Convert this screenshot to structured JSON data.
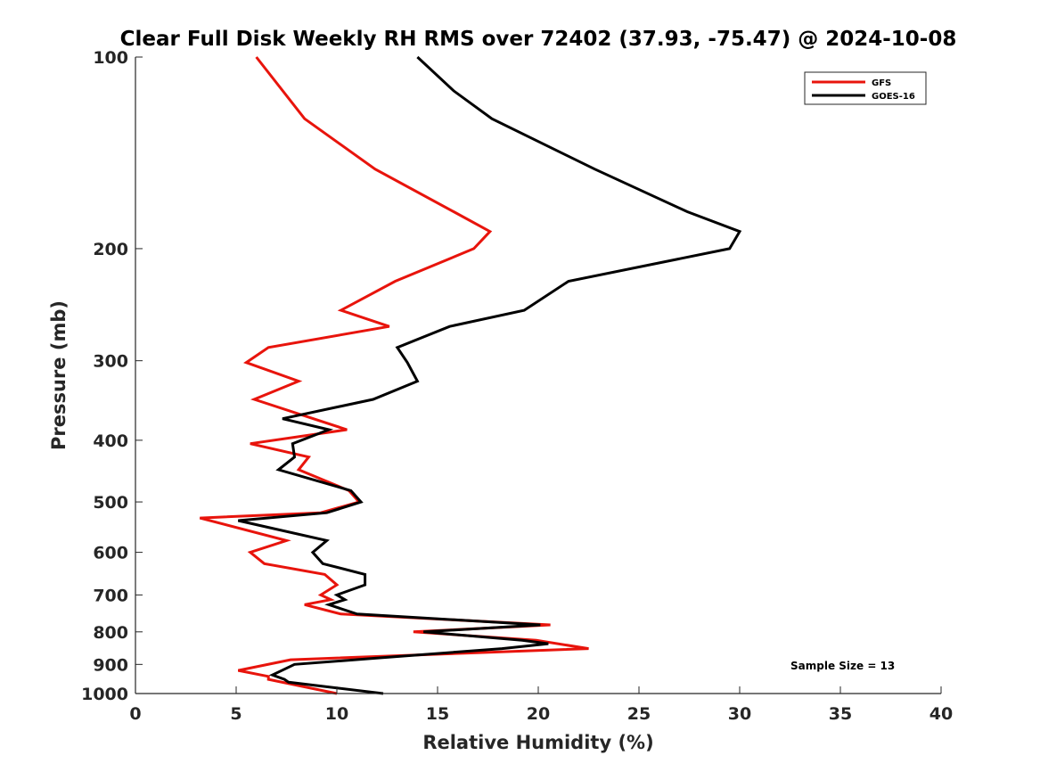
{
  "chart_data": {
    "type": "line",
    "title": "Clear Full Disk Weekly RH RMS over 72402 (37.93, -75.47) @ 2024-10-08",
    "xlabel": "Relative Humidity (%)",
    "ylabel": "Pressure (mb)",
    "xlim": [
      0,
      40
    ],
    "ylim": [
      100,
      1000
    ],
    "yscale": "log",
    "y_reversed": true,
    "xticks": [
      0,
      5,
      10,
      15,
      20,
      25,
      30,
      35,
      40
    ],
    "xtick_labels": [
      "0",
      "5",
      "10",
      "15",
      "20",
      "25",
      "30",
      "35",
      "40"
    ],
    "yticks": [
      100,
      200,
      300,
      400,
      500,
      600,
      700,
      800,
      900,
      1000
    ],
    "ytick_labels": [
      "100",
      "200",
      "300",
      "400",
      "500",
      "600",
      "700",
      "800",
      "900",
      "1000"
    ],
    "grid": false,
    "legend_position": "top-right",
    "annotation": "Sample Size = 13",
    "series": [
      {
        "name": "GFS",
        "color": "#e8140c",
        "points": [
          [
            6.0,
            100
          ],
          [
            8.4,
            125
          ],
          [
            11.9,
            150
          ],
          [
            15.8,
            175
          ],
          [
            17.6,
            188
          ],
          [
            16.8,
            200
          ],
          [
            12.9,
            225
          ],
          [
            10.2,
            250
          ],
          [
            12.6,
            265
          ],
          [
            6.6,
            286
          ],
          [
            5.5,
            302
          ],
          [
            8.1,
            323
          ],
          [
            5.9,
            345
          ],
          [
            10.5,
            385
          ],
          [
            5.7,
            405
          ],
          [
            8.6,
            425
          ],
          [
            8.1,
            445
          ],
          [
            10.6,
            480
          ],
          [
            11.1,
            500
          ],
          [
            9.2,
            520
          ],
          [
            3.2,
            530
          ],
          [
            7.5,
            575
          ],
          [
            5.7,
            600
          ],
          [
            6.4,
            625
          ],
          [
            9.4,
            650
          ],
          [
            10.0,
            675
          ],
          [
            9.2,
            700
          ],
          [
            9.7,
            712
          ],
          [
            8.4,
            725
          ],
          [
            10.2,
            750
          ],
          [
            20.6,
            780
          ],
          [
            13.8,
            800
          ],
          [
            19.9,
            825
          ],
          [
            22.5,
            850
          ],
          [
            7.7,
            885
          ],
          [
            5.1,
            920
          ],
          [
            6.6,
            940
          ],
          [
            6.6,
            950
          ],
          [
            10.0,
            1000
          ]
        ]
      },
      {
        "name": "GOES-16",
        "color": "#000000",
        "points": [
          [
            14.0,
            100
          ],
          [
            15.8,
            113
          ],
          [
            17.7,
            125
          ],
          [
            22.8,
            150
          ],
          [
            27.4,
            175
          ],
          [
            30.0,
            188
          ],
          [
            29.5,
            200
          ],
          [
            21.5,
            225
          ],
          [
            19.3,
            250
          ],
          [
            15.6,
            265
          ],
          [
            13.0,
            286
          ],
          [
            13.5,
            302
          ],
          [
            14.0,
            323
          ],
          [
            11.8,
            345
          ],
          [
            7.3,
            370
          ],
          [
            9.6,
            385
          ],
          [
            7.8,
            405
          ],
          [
            7.9,
            425
          ],
          [
            7.1,
            445
          ],
          [
            10.7,
            480
          ],
          [
            11.2,
            500
          ],
          [
            9.5,
            520
          ],
          [
            5.1,
            535
          ],
          [
            9.5,
            575
          ],
          [
            8.8,
            600
          ],
          [
            9.3,
            625
          ],
          [
            11.4,
            650
          ],
          [
            11.4,
            675
          ],
          [
            10.0,
            700
          ],
          [
            10.4,
            712
          ],
          [
            9.6,
            725
          ],
          [
            11.0,
            750
          ],
          [
            20.1,
            780
          ],
          [
            14.3,
            800
          ],
          [
            19.2,
            825
          ],
          [
            20.5,
            835
          ],
          [
            18.2,
            850
          ],
          [
            11.9,
            880
          ],
          [
            7.9,
            900
          ],
          [
            6.8,
            935
          ],
          [
            7.4,
            950
          ],
          [
            7.6,
            960
          ],
          [
            12.3,
            1000
          ]
        ]
      }
    ]
  }
}
